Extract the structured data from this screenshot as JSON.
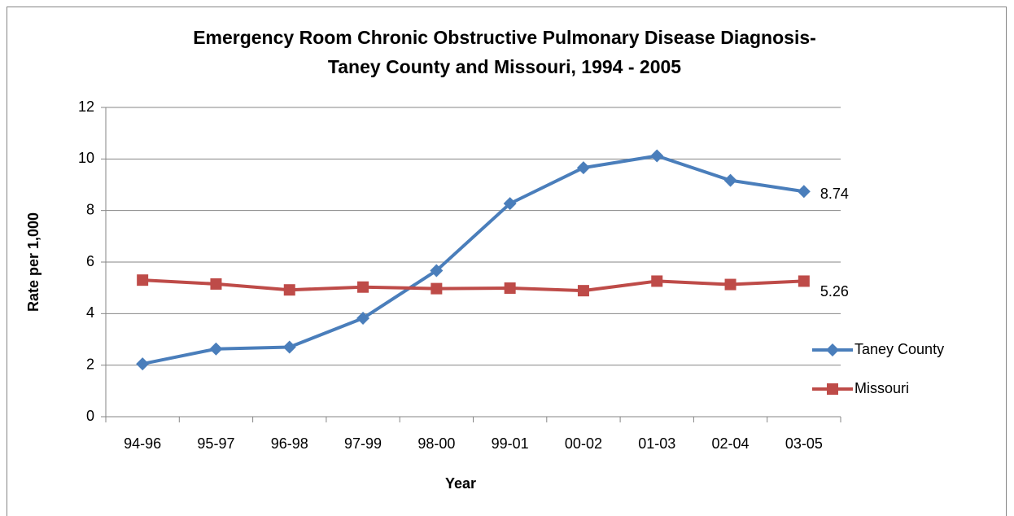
{
  "chart_data": {
    "type": "line",
    "title": [
      "Emergency Room Chronic Obstructive Pulmonary Disease Diagnosis-",
      "Taney County and Missouri, 1994 - 2005"
    ],
    "x_label": "Year",
    "y_label": "Rate per 1,000",
    "categories": [
      "94-96",
      "95-97",
      "96-98",
      "97-99",
      "98-00",
      "99-01",
      "00-02",
      "01-03",
      "02-04",
      "03-05"
    ],
    "series": [
      {
        "name": "Taney County",
        "color": "#4a7ebb",
        "marker": "diamond",
        "values": [
          2.05,
          2.63,
          2.7,
          3.82,
          5.67,
          8.27,
          9.66,
          10.12,
          9.17,
          8.74
        ]
      },
      {
        "name": "Missouri",
        "color": "#be4b48",
        "marker": "square",
        "values": [
          5.3,
          5.15,
          4.92,
          5.03,
          4.97,
          4.99,
          4.89,
          5.26,
          5.13,
          5.26
        ]
      }
    ],
    "data_labels": "last",
    "ylim": [
      0,
      12
    ],
    "yticks": [
      0,
      2,
      4,
      6,
      8,
      10,
      12
    ],
    "grid": true,
    "legend": "right"
  }
}
